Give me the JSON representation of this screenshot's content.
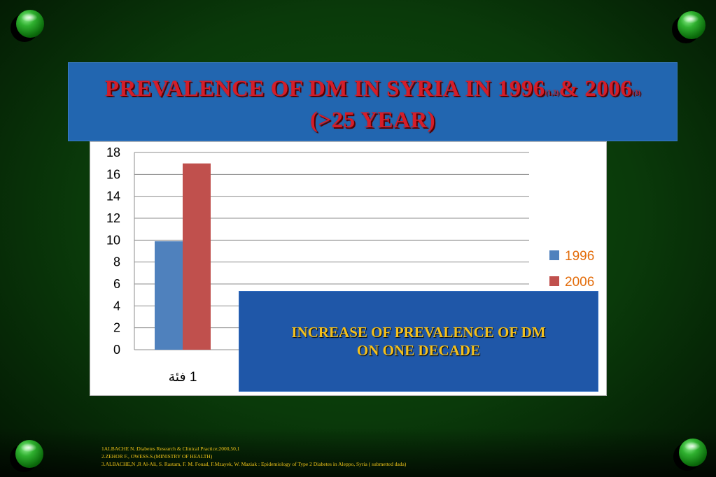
{
  "slide": {
    "title_line1_a": "PREVALENCE OF DM IN SYRIA IN 1996",
    "title_sup1": "(1,2)",
    "title_line1_b": "& 2006",
    "title_sup2": "(3)",
    "title_line2": "(>25 YEAR)",
    "overlay_line1": "INCREASE OF PREVALENCE OF DM",
    "overlay_line2": "ON ONE DECADE",
    "references": [
      "1ALBACHE  N.:Diabetes Research & Clinical Practice;2000,50,1",
      "2.ZEHOR  F., OWESS.S.(MINISTRY OF HEALTH)",
      "3.ALBACHE,N ,R Al-Ali, S. Rastam, F. M. Fouad, F.Mzayek, W. Maziak : Epidemiology of Type 2 Diabetes in Aleppo, Syria ( submetted  dada)"
    ]
  },
  "colors": {
    "background": "#0a3a0a",
    "title_box": "#2266b0",
    "title_text": "#d41e2a",
    "overlay_box": "#1f57a8",
    "overlay_text": "#f3c01d",
    "legend_text": "#e36c0a",
    "references_text": "#f0c419"
  },
  "chart_data": {
    "type": "bar",
    "categories": [
      "1 فئة"
    ],
    "series": [
      {
        "name": "1996",
        "values": [
          9.9
        ],
        "color": "#4f81bd"
      },
      {
        "name": "2006",
        "values": [
          17
        ],
        "color": "#c0504d"
      }
    ],
    "ylim": [
      0,
      18
    ],
    "yticks": [
      0,
      2,
      4,
      6,
      8,
      10,
      12,
      14,
      16,
      18
    ],
    "grid": true,
    "legend": "right",
    "title": "",
    "xlabel": "",
    "ylabel": ""
  }
}
